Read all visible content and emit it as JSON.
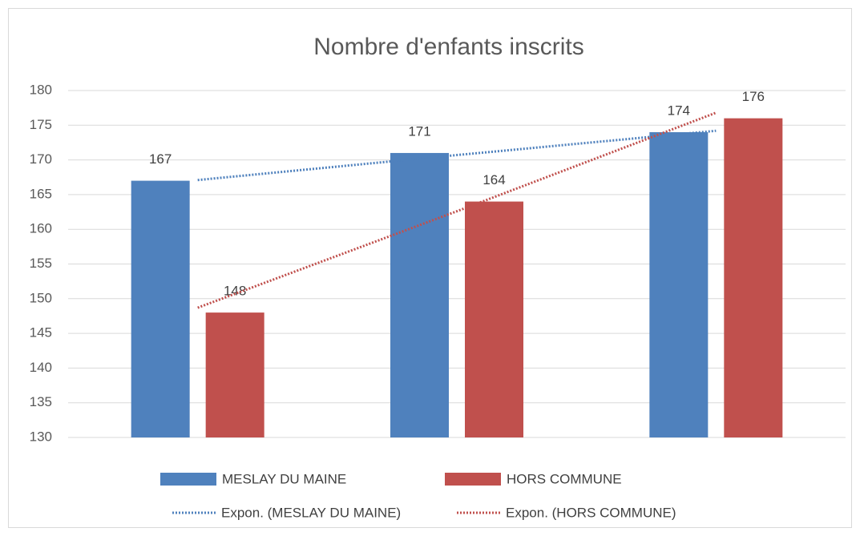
{
  "chart_data": {
    "type": "bar",
    "title": "Nombre d'enfants inscrits",
    "categories": [
      null,
      null,
      null
    ],
    "series": [
      {
        "name": "MESLAY DU MAINE",
        "color": "#4f81bd",
        "values": [
          167,
          171,
          174
        ]
      },
      {
        "name": "HORS COMMUNE",
        "color": "#c0504d",
        "values": [
          148,
          164,
          176
        ]
      }
    ],
    "trendlines": [
      {
        "name": "Expon. (MESLAY DU MAINE)",
        "color": "#4f81bd",
        "values": [
          167.1,
          170.7,
          174.2
        ]
      },
      {
        "name": "Expon. (HORS COMMUNE)",
        "color": "#c0504d",
        "values": [
          148.7,
          162.6,
          176.8
        ]
      }
    ],
    "ylim": [
      130,
      180
    ],
    "yticks": [
      130,
      135,
      140,
      145,
      150,
      155,
      160,
      165,
      170,
      175,
      180
    ],
    "grid": true,
    "legend": "bottom"
  }
}
